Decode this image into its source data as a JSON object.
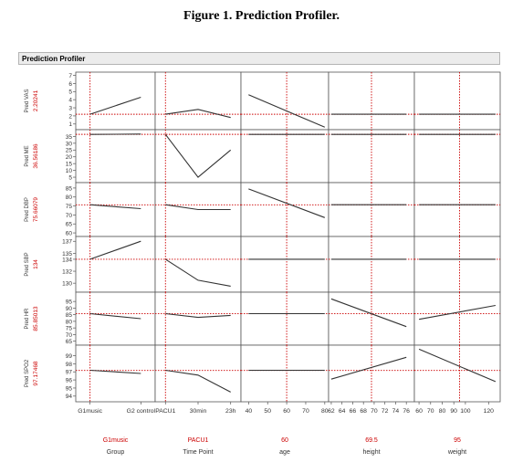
{
  "figure_title": "Figure 1. Prediction Profiler.",
  "panel_title": "Prediction Profiler",
  "colors": {
    "curve": "#333333",
    "crosshair": "#cc0000",
    "current_value": "#cc0000",
    "frame": "#555555",
    "header_bg": "#ececec"
  },
  "chart_data": {
    "type": "line",
    "title": "Prediction Profiler",
    "factors": [
      {
        "name": "Group",
        "current": "G1music",
        "kind": "categorical",
        "categories": [
          "G1music",
          "G2 control"
        ],
        "tick_labels": [
          "G1music",
          "G2 control"
        ]
      },
      {
        "name": "Time Point",
        "current": "PACU1",
        "kind": "categorical",
        "categories": [
          "PACU1",
          "30min",
          "23h"
        ],
        "tick_labels": [
          "PACU1",
          "30min",
          "23h"
        ]
      },
      {
        "name": "age",
        "current": "60",
        "kind": "continuous",
        "xlim": [
          36,
          82
        ],
        "tick_labels": [
          "40",
          "50",
          "60",
          "70",
          "80"
        ],
        "ticks": [
          40,
          50,
          60,
          70,
          80
        ]
      },
      {
        "name": "height",
        "current": "69.5",
        "kind": "continuous",
        "xlim": [
          61.5,
          77.5
        ],
        "tick_labels": [
          "62",
          "64",
          "66",
          "68",
          "70",
          "72",
          "74",
          "76"
        ],
        "ticks": [
          62,
          64,
          66,
          68,
          70,
          72,
          74,
          76
        ]
      },
      {
        "name": "weight",
        "current": "95",
        "kind": "continuous",
        "xlim": [
          56,
          130
        ],
        "tick_labels": [
          "60",
          "70",
          "80",
          "90",
          "100",
          "120"
        ],
        "ticks": [
          60,
          70,
          80,
          90,
          100,
          120
        ]
      }
    ],
    "responses": [
      {
        "name": "Pred VAS",
        "current": "2.20241",
        "ylim": [
          0.3,
          7.4
        ],
        "ticks": [
          1,
          2,
          3,
          4,
          5,
          6,
          7
        ],
        "tick_labels": [
          "1",
          "2",
          "3",
          "4",
          "5",
          "6",
          "7"
        ],
        "curves": [
          {
            "x": [
              "G1music",
              "G2 control"
            ],
            "y": [
              2.2,
              4.3
            ]
          },
          {
            "x": [
              "PACU1",
              "30min",
              "23h"
            ],
            "y": [
              2.2,
              2.8,
              1.8
            ]
          },
          {
            "x": [
              40,
              80
            ],
            "y": [
              4.6,
              0.6
            ]
          },
          {
            "x": [
              62,
              76
            ],
            "y": [
              2.2,
              2.2
            ]
          },
          {
            "x": [
              60,
              126
            ],
            "y": [
              2.2,
              2.2
            ]
          }
        ]
      },
      {
        "name": "Pred ME",
        "current": "36.56186",
        "ylim": [
          1,
          40
        ],
        "ticks": [
          5,
          10,
          15,
          20,
          25,
          30,
          35
        ],
        "tick_labels": [
          "5",
          "10",
          "15",
          "20",
          "25",
          "30",
          "35"
        ],
        "curves": [
          {
            "x": [
              "G1music",
              "G2 control"
            ],
            "y": [
              36.5,
              36.8
            ]
          },
          {
            "x": [
              "PACU1",
              "30min",
              "23h"
            ],
            "y": [
              36.5,
              5,
              25
            ]
          },
          {
            "x": [
              40,
              80
            ],
            "y": [
              36.5,
              36.5
            ]
          },
          {
            "x": [
              62,
              76
            ],
            "y": [
              36.5,
              36.5
            ]
          },
          {
            "x": [
              60,
              126
            ],
            "y": [
              36.5,
              36.5
            ]
          }
        ]
      },
      {
        "name": "Pred DBP",
        "current": "75.66079",
        "ylim": [
          58,
          88
        ],
        "ticks": [
          60,
          65,
          70,
          75,
          80,
          85
        ],
        "tick_labels": [
          "60",
          "65",
          "70",
          "75",
          "80",
          "85"
        ],
        "curves": [
          {
            "x": [
              "G1music",
              "G2 control"
            ],
            "y": [
              75.7,
              73.5
            ]
          },
          {
            "x": [
              "PACU1",
              "30min",
              "23h"
            ],
            "y": [
              75.7,
              73,
              73
            ]
          },
          {
            "x": [
              40,
              80
            ],
            "y": [
              84.5,
              68.5
            ]
          },
          {
            "x": [
              62,
              76
            ],
            "y": [
              75.7,
              75.7
            ]
          },
          {
            "x": [
              60,
              126
            ],
            "y": [
              75.7,
              75.7
            ]
          }
        ]
      },
      {
        "name": "Pred SBP",
        "current": "134",
        "ylim": [
          128.5,
          137.8
        ],
        "ticks": [
          130,
          132,
          134,
          135,
          137
        ],
        "tick_labels": [
          "130",
          "132",
          "134",
          "135",
          "137"
        ],
        "curves": [
          {
            "x": [
              "G1music",
              "G2 control"
            ],
            "y": [
              134,
              137
            ]
          },
          {
            "x": [
              "PACU1",
              "30min",
              "23h"
            ],
            "y": [
              134,
              130.5,
              129.5
            ]
          },
          {
            "x": [
              40,
              80
            ],
            "y": [
              134,
              134
            ]
          },
          {
            "x": [
              62,
              76
            ],
            "y": [
              134,
              134
            ]
          },
          {
            "x": [
              60,
              126
            ],
            "y": [
              134,
              134
            ]
          }
        ]
      },
      {
        "name": "Pred HR",
        "current": "85.85013",
        "ylim": [
          62,
          102
        ],
        "ticks": [
          65,
          70,
          75,
          80,
          85,
          90,
          95
        ],
        "tick_labels": [
          "65",
          "70",
          "75",
          "80",
          "85",
          "90",
          "95"
        ],
        "curves": [
          {
            "x": [
              "G1music",
              "G2 control"
            ],
            "y": [
              85.8,
              82
            ]
          },
          {
            "x": [
              "PACU1",
              "30min",
              "23h"
            ],
            "y": [
              85.8,
              83,
              84.5
            ]
          },
          {
            "x": [
              40,
              80
            ],
            "y": [
              85.8,
              85.8
            ]
          },
          {
            "x": [
              62,
              76
            ],
            "y": [
              97,
              76
            ]
          },
          {
            "x": [
              60,
              126
            ],
            "y": [
              81.5,
              92
            ]
          }
        ]
      },
      {
        "name": "Pred SPO2",
        "current": "97.17468",
        "ylim": [
          93.3,
          100.3
        ],
        "ticks": [
          94,
          95,
          96,
          97,
          98,
          99
        ],
        "tick_labels": [
          "94",
          "95",
          "96",
          "97",
          "98",
          "99"
        ],
        "curves": [
          {
            "x": [
              "G1music",
              "G2 control"
            ],
            "y": [
              97.2,
              96.8
            ]
          },
          {
            "x": [
              "PACU1",
              "30min",
              "23h"
            ],
            "y": [
              97.2,
              96.6,
              94.5
            ]
          },
          {
            "x": [
              40,
              80
            ],
            "y": [
              97.2,
              97.2
            ]
          },
          {
            "x": [
              62,
              76
            ],
            "y": [
              96.1,
              98.8
            ]
          },
          {
            "x": [
              60,
              126
            ],
            "y": [
              99.8,
              95.8
            ]
          }
        ]
      }
    ]
  }
}
